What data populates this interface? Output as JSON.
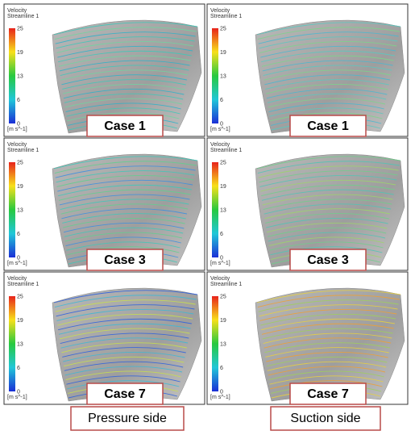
{
  "panels": [
    {
      "legend": {
        "title": "Velocity",
        "subtitle": "Streamline 1",
        "ticks": [
          "25",
          "19",
          "13",
          "6",
          "0"
        ],
        "unit": "[m s^-1]"
      },
      "label": "Case 1"
    },
    {
      "legend": {
        "title": "Velocity",
        "subtitle": "Streamline 1",
        "ticks": [
          "25",
          "19",
          "13",
          "6",
          "0"
        ],
        "unit": "[m s^-1]"
      },
      "label": "Case 1"
    },
    {
      "legend": {
        "title": "Velocity",
        "subtitle": "Streamline 1",
        "ticks": [
          "25",
          "19",
          "13",
          "6",
          "0"
        ],
        "unit": "[m s^-1]"
      },
      "label": "Case 3"
    },
    {
      "legend": {
        "title": "Velocity",
        "subtitle": "Streamline 1",
        "ticks": [
          "25",
          "19",
          "13",
          "6",
          "0"
        ],
        "unit": "[m s^-1]"
      },
      "label": "Case 3"
    },
    {
      "legend": {
        "title": "Velocity",
        "subtitle": "Streamline 1",
        "ticks": [
          "25",
          "19",
          "13",
          "6",
          "0"
        ],
        "unit": "[m s^-1]"
      },
      "label": "Case 7"
    },
    {
      "legend": {
        "title": "Velocity",
        "subtitle": "Streamline 1",
        "ticks": [
          "25",
          "19",
          "13",
          "6",
          "0"
        ],
        "unit": "[m s^-1]"
      },
      "label": "Case 7"
    }
  ],
  "column_labels": [
    "Pressure side",
    "Suction side"
  ]
}
